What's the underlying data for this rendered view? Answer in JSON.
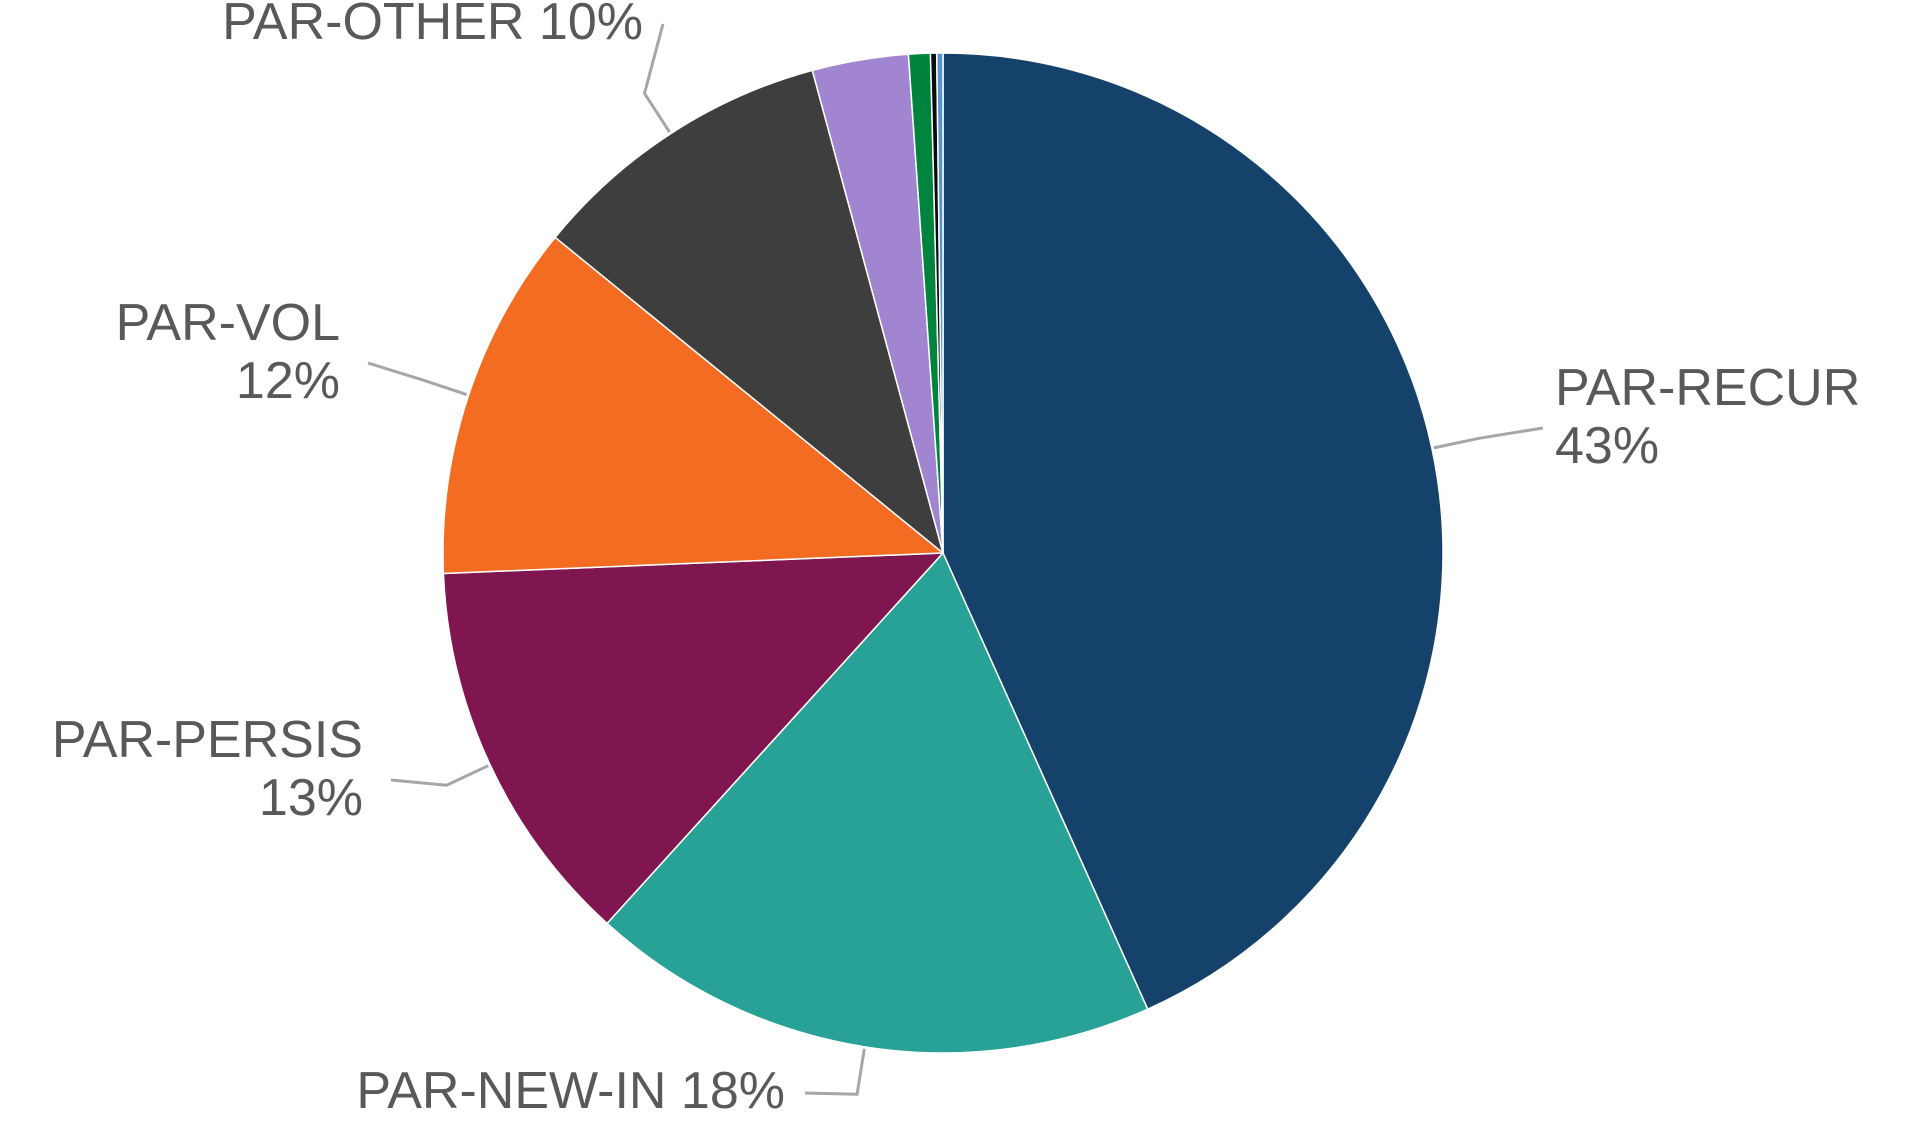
{
  "chart_data": {
    "type": "pie",
    "title": "",
    "start_angle_deg": 0,
    "direction": "clockwise",
    "slices": [
      {
        "label": "PAR-RECUR",
        "value_label": "43%",
        "value": 43.2,
        "color": "#15426b",
        "show_label": true
      },
      {
        "label": "PAR-NEW-IN",
        "value_label": "18%",
        "value": 18.4,
        "color": "#28a197",
        "show_label": true
      },
      {
        "label": "PAR-PERSIS",
        "value_label": "13%",
        "value": 12.6,
        "color": "#801650",
        "show_label": true
      },
      {
        "label": "PAR-VOL",
        "value_label": "12%",
        "value": 11.5,
        "color": "#f36c22",
        "show_label": true
      },
      {
        "label": "PAR-OTHER",
        "value_label": "10%",
        "value": 9.9,
        "color": "#3e3e3e",
        "show_label": true
      },
      {
        "label": "",
        "value_label": "",
        "value": 3.1,
        "color": "#a285d1",
        "show_label": false
      },
      {
        "label": "",
        "value_label": "",
        "value": 0.7,
        "color": "#00843d",
        "show_label": false
      },
      {
        "label": "",
        "value_label": "",
        "value": 0.2,
        "color": "#0b0c0c",
        "show_label": false
      },
      {
        "label": "",
        "value_label": "",
        "value": 0.2,
        "color": "#5694ca",
        "show_label": false
      }
    ]
  }
}
